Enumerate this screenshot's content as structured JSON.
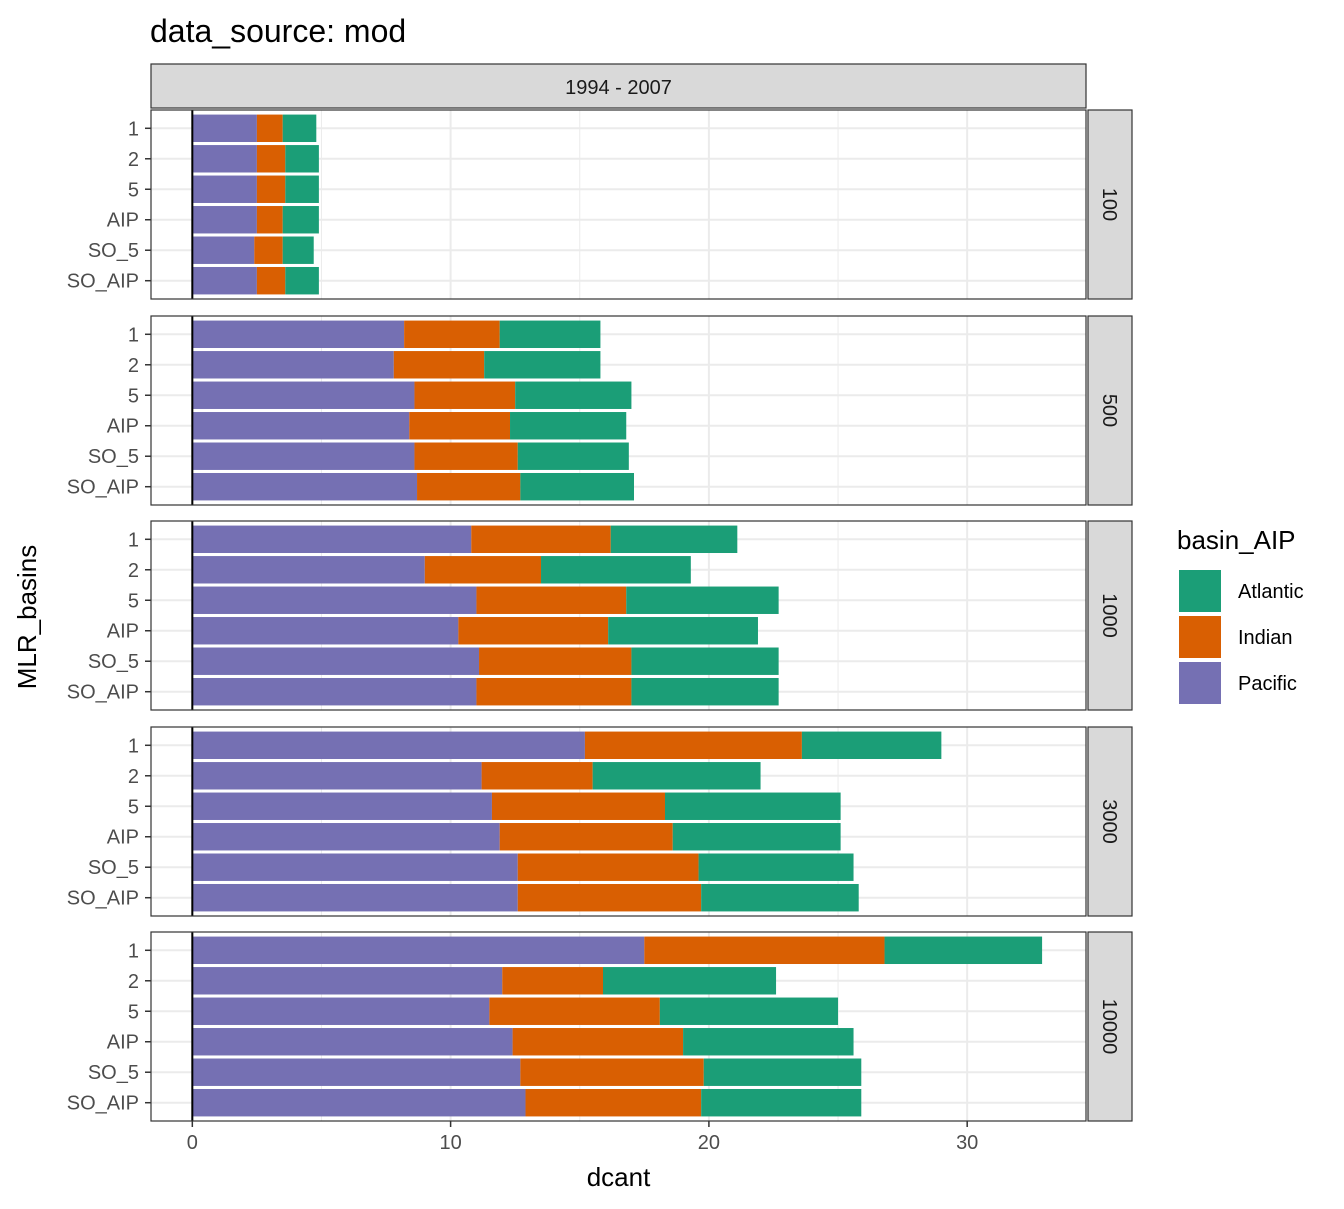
{
  "chart_data": {
    "type": "bar",
    "orientation": "horizontal",
    "stacked": true,
    "title": "data_source: mod",
    "xlabel": "dcant",
    "ylabel": "MLR_basins",
    "xlim": [
      -1.6,
      34.6
    ],
    "xticks": [
      0,
      10,
      20,
      30
    ],
    "column_facet": "1994 - 2007",
    "categories": [
      "SO_AIP",
      "SO_5",
      "AIP",
      "5",
      "2",
      "1"
    ],
    "legend": {
      "title": "basin_AIP",
      "position": "right",
      "entries": [
        "Atlantic",
        "Indian",
        "Pacific"
      ]
    },
    "colors": {
      "Atlantic": "#1b9e77",
      "Indian": "#d95f02",
      "Pacific": "#7570b3"
    },
    "grid": true,
    "stack_order": [
      "Pacific",
      "Indian",
      "Atlantic"
    ],
    "panels": [
      {
        "facet": "100",
        "series": [
          {
            "name": "Pacific",
            "values": [
              2.5,
              2.4,
              2.5,
              2.5,
              2.5,
              2.5
            ]
          },
          {
            "name": "Indian",
            "values": [
              1.1,
              1.1,
              1.0,
              1.1,
              1.1,
              1.0
            ]
          },
          {
            "name": "Atlantic",
            "values": [
              1.3,
              1.2,
              1.4,
              1.3,
              1.3,
              1.3
            ]
          }
        ]
      },
      {
        "facet": "500",
        "series": [
          {
            "name": "Pacific",
            "values": [
              8.7,
              8.6,
              8.4,
              8.6,
              7.8,
              8.2
            ]
          },
          {
            "name": "Indian",
            "values": [
              4.0,
              4.0,
              3.9,
              3.9,
              3.5,
              3.7
            ]
          },
          {
            "name": "Atlantic",
            "values": [
              4.4,
              4.3,
              4.5,
              4.5,
              4.5,
              3.9
            ]
          }
        ]
      },
      {
        "facet": "1000",
        "series": [
          {
            "name": "Pacific",
            "values": [
              11.0,
              11.1,
              10.3,
              11.0,
              9.0,
              10.8
            ]
          },
          {
            "name": "Indian",
            "values": [
              6.0,
              5.9,
              5.8,
              5.8,
              4.5,
              5.4
            ]
          },
          {
            "name": "Atlantic",
            "values": [
              5.7,
              5.7,
              5.8,
              5.9,
              5.8,
              4.9
            ]
          }
        ]
      },
      {
        "facet": "3000",
        "series": [
          {
            "name": "Pacific",
            "values": [
              12.6,
              12.6,
              11.9,
              11.6,
              11.2,
              15.2
            ]
          },
          {
            "name": "Indian",
            "values": [
              7.1,
              7.0,
              6.7,
              6.7,
              4.3,
              8.4
            ]
          },
          {
            "name": "Atlantic",
            "values": [
              6.1,
              6.0,
              6.5,
              6.8,
              6.5,
              5.4
            ]
          }
        ]
      },
      {
        "facet": "10000",
        "series": [
          {
            "name": "Pacific",
            "values": [
              12.9,
              12.7,
              12.4,
              11.5,
              12.0,
              17.5
            ]
          },
          {
            "name": "Indian",
            "values": [
              6.8,
              7.1,
              6.6,
              6.6,
              3.9,
              9.3
            ]
          },
          {
            "name": "Atlantic",
            "values": [
              6.2,
              6.1,
              6.6,
              6.9,
              6.7,
              6.1
            ]
          }
        ]
      }
    ]
  }
}
